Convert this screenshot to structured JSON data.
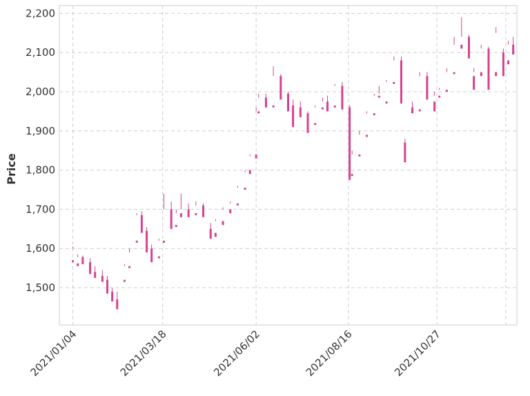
{
  "chart_data": {
    "type": "candlestick",
    "title": "",
    "xlabel": "",
    "ylabel": "Price",
    "ylim": [
      1405,
      2220
    ],
    "xlim": [
      "2020-12-24",
      "2021-12-31"
    ],
    "grid": true,
    "y_ticks": [
      1500,
      1600,
      1700,
      1800,
      1900,
      2000,
      2100,
      2200
    ],
    "y_tick_labels": [
      "1,500",
      "1,600",
      "1,700",
      "1,800",
      "1,900",
      "2,000",
      "2,100",
      "2,200"
    ],
    "x_ticks": [
      "2021-01-04",
      "2021-03-18",
      "2021-06-02",
      "2021-08-16",
      "2021-10-27"
    ],
    "x_tick_labels": [
      "2021/01/04",
      "2021/03/18",
      "2021/06/02",
      "2021/08/16",
      "2021/10/27"
    ],
    "colors": {
      "up": "#8cb34d",
      "down": "#d6418f",
      "grid": "#cccccc",
      "frame": "#dddddd"
    },
    "candles": [
      [
        "2021-01-04",
        1570,
        1605,
        1600,
        1565
      ],
      [
        "2021-01-08",
        1562,
        1585,
        1578,
        1555
      ],
      [
        "2021-01-12",
        1578,
        1582,
        1565,
        1560
      ],
      [
        "2021-01-18",
        1565,
        1575,
        1540,
        1535
      ],
      [
        "2021-01-22",
        1540,
        1555,
        1530,
        1525
      ],
      [
        "2021-01-28",
        1530,
        1545,
        1520,
        1515
      ],
      [
        "2021-02-01",
        1520,
        1530,
        1490,
        1485
      ],
      [
        "2021-02-05",
        1490,
        1500,
        1470,
        1465
      ],
      [
        "2021-02-09",
        1470,
        1490,
        1455,
        1445
      ],
      [
        "2021-02-15",
        1520,
        1560,
        1555,
        1515
      ],
      [
        "2021-02-19",
        1555,
        1600,
        1590,
        1550
      ],
      [
        "2021-02-25",
        1620,
        1690,
        1685,
        1615
      ],
      [
        "2021-03-01",
        1685,
        1695,
        1645,
        1640
      ],
      [
        "2021-03-05",
        1645,
        1655,
        1600,
        1590
      ],
      [
        "2021-03-09",
        1600,
        1610,
        1575,
        1565
      ],
      [
        "2021-03-15",
        1580,
        1625,
        1620,
        1575
      ],
      [
        "2021-03-19",
        1620,
        1740,
        1700,
        1615
      ],
      [
        "2021-03-25",
        1700,
        1720,
        1660,
        1650
      ],
      [
        "2021-03-29",
        1660,
        1700,
        1690,
        1655
      ],
      [
        "2021-04-02",
        1690,
        1740,
        1700,
        1680
      ],
      [
        "2021-04-08",
        1700,
        1715,
        1690,
        1680
      ],
      [
        "2021-04-14",
        1690,
        1720,
        1710,
        1685
      ],
      [
        "2021-04-20",
        1710,
        1715,
        1685,
        1680
      ],
      [
        "2021-04-26",
        1650,
        1665,
        1640,
        1625
      ],
      [
        "2021-04-30",
        1640,
        1675,
        1670,
        1630
      ],
      [
        "2021-05-06",
        1670,
        1705,
        1700,
        1660
      ],
      [
        "2021-05-12",
        1700,
        1720,
        1715,
        1690
      ],
      [
        "2021-05-18",
        1715,
        1760,
        1755,
        1710
      ],
      [
        "2021-05-24",
        1755,
        1800,
        1795,
        1750
      ],
      [
        "2021-05-28",
        1800,
        1840,
        1835,
        1790
      ],
      [
        "2021-06-02",
        1840,
        1960,
        1950,
        1830
      ],
      [
        "2021-06-04",
        1950,
        1995,
        1985,
        1945
      ],
      [
        "2021-06-10",
        1985,
        1995,
        1965,
        1960
      ],
      [
        "2021-06-16",
        1965,
        2065,
        2040,
        1960
      ],
      [
        "2021-06-22",
        2040,
        2045,
        1995,
        1980
      ],
      [
        "2021-06-28",
        1995,
        2000,
        1965,
        1950
      ],
      [
        "2021-07-02",
        1965,
        1980,
        1960,
        1910
      ],
      [
        "2021-07-08",
        1960,
        1975,
        1945,
        1935
      ],
      [
        "2021-07-14",
        1945,
        1950,
        1920,
        1895
      ],
      [
        "2021-07-20",
        1920,
        1965,
        1960,
        1915
      ],
      [
        "2021-07-26",
        1960,
        1985,
        1975,
        1955
      ],
      [
        "2021-07-30",
        1975,
        1990,
        1965,
        1950
      ],
      [
        "2021-08-05",
        1965,
        2020,
        2015,
        1960
      ],
      [
        "2021-08-11",
        2015,
        2025,
        1960,
        1955
      ],
      [
        "2021-08-17",
        1960,
        1965,
        1790,
        1775
      ],
      [
        "2021-08-19",
        1790,
        1850,
        1840,
        1785
      ],
      [
        "2021-08-25",
        1840,
        1900,
        1890,
        1835
      ],
      [
        "2021-08-31",
        1890,
        1950,
        1945,
        1885
      ],
      [
        "2021-09-06",
        1945,
        1995,
        1990,
        1940
      ],
      [
        "2021-09-10",
        1990,
        2015,
        1995,
        1985
      ],
      [
        "2021-09-16",
        1975,
        2030,
        2025,
        1970
      ],
      [
        "2021-09-22",
        2025,
        2090,
        2080,
        2020
      ],
      [
        "2021-09-28",
        2080,
        2090,
        1980,
        1970
      ],
      [
        "2021-10-01",
        1870,
        1880,
        1835,
        1820
      ],
      [
        "2021-10-07",
        1960,
        1975,
        1955,
        1945
      ],
      [
        "2021-10-13",
        1955,
        2050,
        2040,
        1950
      ],
      [
        "2021-10-19",
        2040,
        2050,
        1990,
        1980
      ],
      [
        "2021-10-25",
        1975,
        2000,
        1990,
        1950
      ],
      [
        "2021-10-29",
        1990,
        2010,
        2005,
        1985
      ],
      [
        "2021-11-04",
        2005,
        2060,
        2050,
        2000
      ],
      [
        "2021-11-10",
        2050,
        2140,
        2120,
        2045
      ],
      [
        "2021-11-16",
        2120,
        2190,
        2140,
        2110
      ],
      [
        "2021-11-22",
        2140,
        2145,
        2090,
        2085
      ],
      [
        "2021-11-26",
        2040,
        2060,
        2050,
        2005
      ],
      [
        "2021-12-02",
        2050,
        2120,
        2110,
        2040
      ],
      [
        "2021-12-08",
        2110,
        2115,
        2060,
        2005
      ],
      [
        "2021-12-14",
        2050,
        2165,
        2150,
        2040
      ],
      [
        "2021-12-20",
        2100,
        2110,
        2060,
        2040
      ],
      [
        "2021-12-24",
        2080,
        2130,
        2120,
        2070
      ],
      [
        "2021-12-28",
        2120,
        2140,
        2100,
        2095
      ]
    ]
  }
}
